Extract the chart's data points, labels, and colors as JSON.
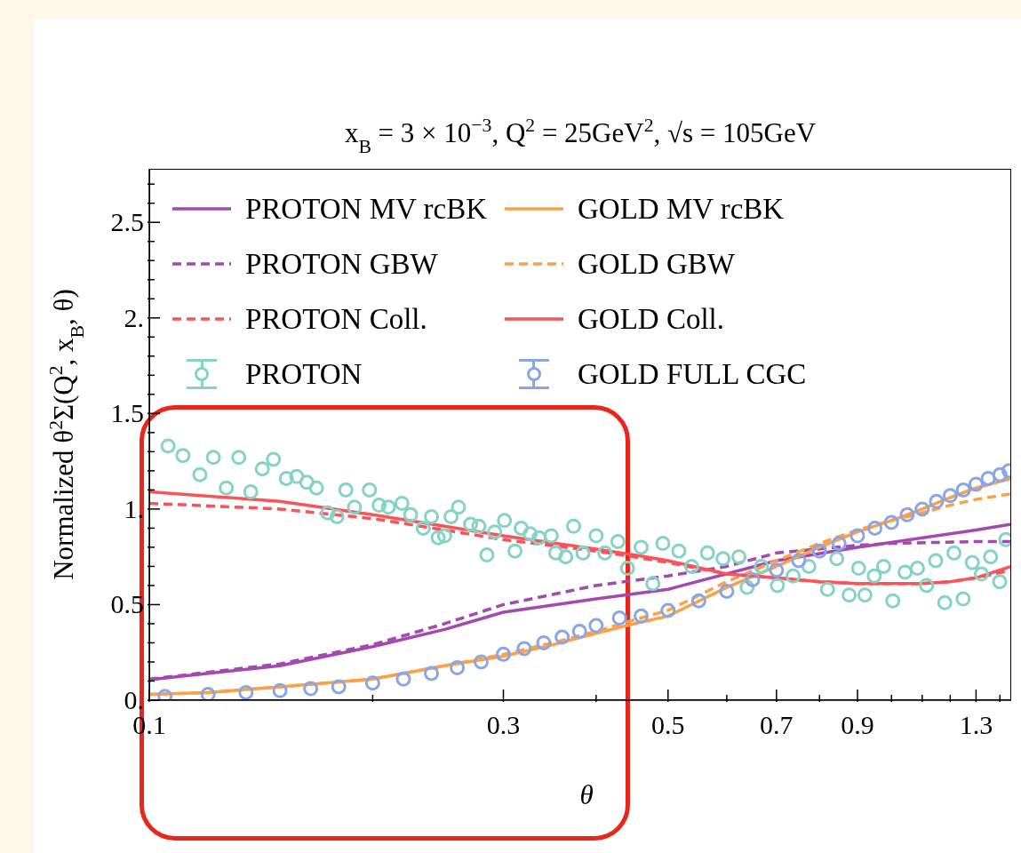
{
  "chart_data": {
    "type": "line",
    "title": "x$_{B}$ = 3 × 10$^{−3}$, Q$^{2}$ = 25GeV$^{2}$, √s = 105GeV",
    "xlabel": "θ",
    "ylabel": "Normalized   θ$^{2}$Σ(Q$^{2}$, x$_{B}$, θ)",
    "log": "x",
    "xlim": [
      0.1,
      1.45
    ],
    "ylim": [
      0,
      2.78
    ],
    "xticks": [
      0.1,
      {
        "value": 0.2,
        "label": null
      },
      0.3,
      {
        "value": 0.4,
        "label": null
      },
      0.5,
      {
        "value": 0.6,
        "label": null
      },
      0.7,
      {
        "value": 0.8,
        "label": null
      },
      0.9,
      {
        "value": 1.0,
        "label": null
      },
      {
        "value": 1.1,
        "label": null
      },
      {
        "value": 1.2,
        "label": null
      },
      1.3,
      {
        "value": 1.4,
        "label": null
      }
    ],
    "yticks": [
      {
        "value": 0,
        "label": "0."
      },
      {
        "value": 0.1,
        "label": null
      },
      {
        "value": 0.2,
        "label": null
      },
      {
        "value": 0.3,
        "label": null
      },
      {
        "value": 0.4,
        "label": null
      },
      0.5,
      {
        "value": 0.6,
        "label": null
      },
      {
        "value": 0.7,
        "label": null
      },
      {
        "value": 0.8,
        "label": null
      },
      {
        "value": 0.9,
        "label": null
      },
      {
        "value": 1,
        "label": "1."
      },
      {
        "value": 1.1,
        "label": null
      },
      {
        "value": 1.2,
        "label": null
      },
      {
        "value": 1.3,
        "label": null
      },
      {
        "value": 1.4,
        "label": null
      },
      1.5,
      {
        "value": 1.6,
        "label": null
      },
      {
        "value": 1.7,
        "label": null
      },
      {
        "value": 1.8,
        "label": null
      },
      {
        "value": 1.9,
        "label": null
      },
      {
        "value": 2,
        "label": "2."
      },
      {
        "value": 2.1,
        "label": null
      },
      {
        "value": 2.2,
        "label": null
      },
      {
        "value": 2.3,
        "label": null
      },
      {
        "value": 2.4,
        "label": null
      },
      2.5,
      {
        "value": 2.6,
        "label": null
      },
      {
        "value": 2.7,
        "label": null
      }
    ],
    "legend": "top",
    "series": [
      {
        "name": "PROTON MV rcBK",
        "line_style": "solid",
        "color": "#a24aad",
        "x": [
          0.1,
          0.15,
          0.2,
          0.25,
          0.3,
          0.4,
          0.5,
          0.7,
          0.9,
          1.3,
          1.45
        ],
        "values": [
          0.107,
          0.18,
          0.28,
          0.37,
          0.46,
          0.53,
          0.58,
          0.73,
          0.8,
          0.89,
          0.92
        ]
      },
      {
        "name": "PROTON GBW",
        "line_style": "dashed",
        "color": "#a24aad",
        "x": [
          0.1,
          0.15,
          0.2,
          0.25,
          0.3,
          0.4,
          0.5,
          0.6,
          0.7,
          0.9,
          1.0,
          1.3,
          1.45
        ],
        "values": [
          0.11,
          0.19,
          0.29,
          0.4,
          0.5,
          0.6,
          0.65,
          0.7,
          0.77,
          0.81,
          0.82,
          0.83,
          0.83
        ]
      },
      {
        "name": "PROTON Coll.",
        "line_style": "dashed",
        "color": "#fb5358",
        "x": [
          0.1,
          0.15,
          0.2,
          0.25,
          0.3,
          0.4,
          0.45,
          0.5,
          0.6,
          0.7,
          0.8,
          0.9,
          1.0,
          1.1,
          1.2,
          1.3,
          1.45
        ],
        "values": [
          1.03,
          1.0,
          0.95,
          0.89,
          0.84,
          0.78,
          0.75,
          0.72,
          0.66,
          0.64,
          0.62,
          0.61,
          0.61,
          0.61,
          0.62,
          0.64,
          0.68
        ]
      },
      {
        "name": "PROTON",
        "type": "scatter",
        "marker": "circle",
        "color": "#84d3c5",
        "x": [
          0.106,
          0.111,
          0.117,
          0.122,
          0.127,
          0.132,
          0.137,
          0.142,
          0.147,
          0.153,
          0.158,
          0.163,
          0.168,
          0.174,
          0.179,
          0.184,
          0.189,
          0.198,
          0.204,
          0.21,
          0.219,
          0.225,
          0.234,
          0.24,
          0.245,
          0.25,
          0.255,
          0.261,
          0.271,
          0.278,
          0.285,
          0.292,
          0.301,
          0.311,
          0.317,
          0.326,
          0.335,
          0.348,
          0.353,
          0.364,
          0.373,
          0.384,
          0.4,
          0.411,
          0.428,
          0.441,
          0.46,
          0.477,
          0.492,
          0.517,
          0.538,
          0.565,
          0.593,
          0.623,
          0.639,
          0.668,
          0.702,
          0.737,
          0.774,
          0.82,
          0.844,
          0.877,
          0.903,
          0.921,
          0.948,
          0.976,
          1.004,
          1.043,
          1.084,
          1.115,
          1.147,
          1.18,
          1.214,
          1.249,
          1.285,
          1.322,
          1.36,
          1.399,
          1.426
        ],
        "values": [
          1.33,
          1.28,
          1.18,
          1.27,
          1.11,
          1.27,
          1.09,
          1.21,
          1.26,
          1.16,
          1.17,
          1.14,
          1.11,
          0.98,
          0.96,
          1.1,
          1.01,
          1.1,
          1.02,
          1.01,
          1.03,
          0.97,
          0.9,
          0.96,
          0.85,
          0.86,
          0.96,
          1.01,
          0.92,
          0.91,
          0.76,
          0.88,
          0.94,
          0.78,
          0.9,
          0.87,
          0.85,
          0.86,
          0.77,
          0.75,
          0.91,
          0.77,
          0.86,
          0.77,
          0.83,
          0.69,
          0.8,
          0.61,
          0.82,
          0.78,
          0.7,
          0.77,
          0.74,
          0.75,
          0.59,
          0.7,
          0.6,
          0.65,
          0.7,
          0.58,
          0.74,
          0.55,
          0.69,
          0.55,
          0.65,
          0.7,
          0.52,
          0.67,
          0.69,
          0.6,
          0.73,
          0.51,
          0.77,
          0.53,
          0.72,
          0.66,
          0.75,
          0.62,
          0.84
        ]
      },
      {
        "name": "GOLD MV rcBK",
        "line_style": "solid",
        "color": "#fca14a",
        "x": [
          0.1,
          0.12,
          0.15,
          0.2,
          0.25,
          0.3,
          0.35,
          0.4,
          0.45,
          0.5,
          0.6,
          0.7,
          0.8,
          0.9,
          1.0,
          1.1,
          1.2,
          1.3,
          1.45
        ],
        "values": [
          0.03,
          0.04,
          0.07,
          0.11,
          0.18,
          0.23,
          0.29,
          0.35,
          0.4,
          0.44,
          0.59,
          0.7,
          0.8,
          0.88,
          0.94,
          1.0,
          1.06,
          1.11,
          1.16
        ]
      },
      {
        "name": "GOLD GBW",
        "line_style": "dashed",
        "color": "#fca14a",
        "x": [
          0.1,
          0.12,
          0.15,
          0.2,
          0.25,
          0.3,
          0.35,
          0.4,
          0.45,
          0.5,
          0.6,
          0.7,
          0.8,
          0.9,
          1.0,
          1.1,
          1.2,
          1.3,
          1.45
        ],
        "values": [
          0.03,
          0.04,
          0.07,
          0.11,
          0.18,
          0.24,
          0.3,
          0.36,
          0.42,
          0.47,
          0.62,
          0.73,
          0.82,
          0.89,
          0.94,
          0.98,
          1.02,
          1.05,
          1.08
        ]
      },
      {
        "name": "GOLD Coll.",
        "line_style": "solid",
        "color": "#fb5358",
        "x": [
          0.1,
          0.15,
          0.2,
          0.25,
          0.3,
          0.4,
          0.45,
          0.5,
          0.6,
          0.7,
          0.8,
          0.9,
          1.0,
          1.1,
          1.2,
          1.3,
          1.45
        ],
        "values": [
          1.09,
          1.04,
          0.97,
          0.91,
          0.86,
          0.79,
          0.76,
          0.73,
          0.66,
          0.64,
          0.62,
          0.61,
          0.61,
          0.61,
          0.62,
          0.64,
          0.7
        ]
      },
      {
        "name": "GOLD FULL CGC",
        "type": "scatter",
        "marker": "circle",
        "color": "#89a6e6",
        "x": [
          0.105,
          0.12,
          0.135,
          0.15,
          0.165,
          0.18,
          0.2,
          0.22,
          0.24,
          0.26,
          0.28,
          0.3,
          0.32,
          0.34,
          0.36,
          0.38,
          0.4,
          0.43,
          0.46,
          0.5,
          0.55,
          0.6,
          0.65,
          0.7,
          0.75,
          0.8,
          0.85,
          0.9,
          0.95,
          1.0,
          1.05,
          1.1,
          1.15,
          1.2,
          1.25,
          1.3,
          1.35,
          1.4,
          1.44
        ],
        "values": [
          0.02,
          0.03,
          0.04,
          0.05,
          0.06,
          0.07,
          0.09,
          0.11,
          0.14,
          0.17,
          0.2,
          0.24,
          0.27,
          0.3,
          0.33,
          0.36,
          0.39,
          0.43,
          0.44,
          0.47,
          0.52,
          0.57,
          0.63,
          0.68,
          0.73,
          0.78,
          0.82,
          0.86,
          0.9,
          0.93,
          0.97,
          1.0,
          1.04,
          1.07,
          1.1,
          1.13,
          1.16,
          1.18,
          1.2
        ]
      }
    ]
  }
}
